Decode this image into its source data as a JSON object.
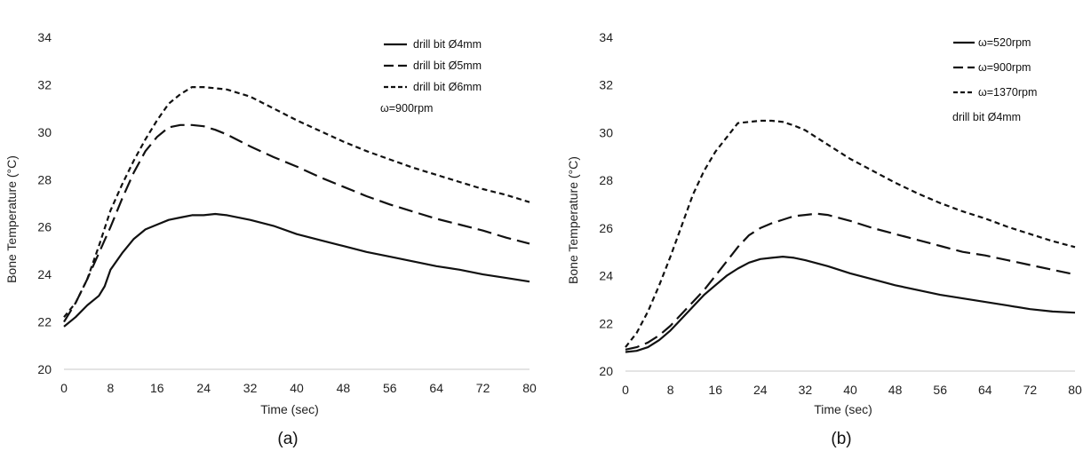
{
  "chart_data": [
    {
      "type": "line",
      "panel_label": "(a)",
      "xlabel": "Time (sec)",
      "ylabel": "Bone Temperature (°C)",
      "xlim": [
        0,
        80
      ],
      "ylim": [
        20,
        34
      ],
      "xticks": [
        0,
        8,
        16,
        24,
        32,
        40,
        48,
        56,
        64,
        72,
        80
      ],
      "yticks": [
        20,
        22,
        24,
        26,
        28,
        30,
        32,
        34
      ],
      "grid": false,
      "legend_position": "top-right",
      "legend_note": "ω=900rpm",
      "series": [
        {
          "name": "drill bit Ø4mm",
          "dash": "solid",
          "x": [
            0,
            2,
            4,
            6,
            7,
            8,
            10,
            12,
            14,
            16,
            18,
            20,
            22,
            24,
            26,
            28,
            32,
            36,
            40,
            44,
            48,
            52,
            56,
            60,
            64,
            68,
            72,
            76,
            80
          ],
          "y": [
            21.8,
            22.2,
            22.7,
            23.1,
            23.5,
            24.2,
            24.9,
            25.5,
            25.9,
            26.1,
            26.3,
            26.4,
            26.5,
            26.5,
            26.55,
            26.5,
            26.3,
            26.05,
            25.7,
            25.45,
            25.2,
            24.95,
            24.75,
            24.55,
            24.35,
            24.2,
            24.0,
            23.85,
            23.7
          ]
        },
        {
          "name": "drill bit Ø5mm",
          "dash": "long-dash",
          "x": [
            0,
            2,
            4,
            6,
            8,
            10,
            12,
            14,
            16,
            18,
            20,
            22,
            24,
            26,
            28,
            32,
            36,
            40,
            44,
            48,
            52,
            56,
            60,
            64,
            68,
            72,
            76,
            80
          ],
          "y": [
            22.0,
            22.8,
            23.8,
            24.9,
            26.0,
            27.2,
            28.3,
            29.2,
            29.8,
            30.2,
            30.3,
            30.3,
            30.25,
            30.1,
            29.9,
            29.4,
            28.95,
            28.55,
            28.1,
            27.7,
            27.3,
            26.95,
            26.65,
            26.35,
            26.1,
            25.85,
            25.55,
            25.3
          ]
        },
        {
          "name": "drill bit Ø6mm",
          "dash": "short-dash",
          "x": [
            0,
            2,
            4,
            6,
            8,
            10,
            12,
            14,
            16,
            18,
            20,
            22,
            24,
            26,
            28,
            32,
            36,
            40,
            44,
            48,
            52,
            56,
            60,
            64,
            68,
            72,
            76,
            80
          ],
          "y": [
            22.2,
            22.8,
            23.8,
            25.2,
            26.7,
            27.8,
            28.8,
            29.7,
            30.5,
            31.2,
            31.6,
            31.9,
            31.9,
            31.85,
            31.8,
            31.5,
            31.0,
            30.5,
            30.05,
            29.6,
            29.2,
            28.85,
            28.5,
            28.2,
            27.9,
            27.6,
            27.35,
            27.05
          ]
        }
      ]
    },
    {
      "type": "line",
      "panel_label": "(b)",
      "xlabel": "Time (sec)",
      "ylabel": "Bone Temperature (°C)",
      "xlim": [
        0,
        80
      ],
      "ylim": [
        20,
        34
      ],
      "xticks": [
        0,
        8,
        16,
        24,
        32,
        40,
        48,
        56,
        64,
        72,
        80
      ],
      "yticks": [
        20,
        22,
        24,
        26,
        28,
        30,
        32,
        34
      ],
      "grid": false,
      "legend_position": "top-right",
      "legend_note": "drill bit Ø4mm",
      "series": [
        {
          "name": "ω=520rpm",
          "dash": "solid",
          "x": [
            0,
            2,
            4,
            6,
            8,
            10,
            12,
            14,
            16,
            18,
            20,
            22,
            24,
            26,
            28,
            30,
            32,
            36,
            40,
            44,
            48,
            52,
            56,
            60,
            64,
            68,
            72,
            76,
            80
          ],
          "y": [
            20.8,
            20.85,
            21.0,
            21.3,
            21.7,
            22.2,
            22.7,
            23.2,
            23.6,
            24.0,
            24.3,
            24.55,
            24.7,
            24.75,
            24.8,
            24.75,
            24.65,
            24.4,
            24.1,
            23.85,
            23.6,
            23.4,
            23.2,
            23.05,
            22.9,
            22.75,
            22.6,
            22.5,
            22.45
          ]
        },
        {
          "name": "ω=900rpm",
          "dash": "long-dash",
          "x": [
            0,
            2,
            4,
            6,
            8,
            10,
            12,
            14,
            16,
            18,
            20,
            22,
            24,
            26,
            28,
            30,
            32,
            34,
            36,
            40,
            44,
            48,
            52,
            56,
            60,
            64,
            68,
            72,
            76,
            80
          ],
          "y": [
            20.9,
            21.0,
            21.2,
            21.5,
            21.9,
            22.4,
            22.9,
            23.4,
            24.0,
            24.6,
            25.2,
            25.7,
            26.0,
            26.2,
            26.35,
            26.5,
            26.55,
            26.6,
            26.55,
            26.3,
            26.0,
            25.75,
            25.5,
            25.25,
            25.0,
            24.85,
            24.65,
            24.45,
            24.25,
            24.05
          ]
        },
        {
          "name": "ω=1370rpm",
          "dash": "short-dash",
          "x": [
            0,
            2,
            4,
            6,
            8,
            10,
            12,
            14,
            16,
            18,
            20,
            22,
            24,
            26,
            28,
            30,
            32,
            36,
            40,
            44,
            48,
            52,
            56,
            60,
            64,
            68,
            72,
            76,
            80
          ],
          "y": [
            21.0,
            21.6,
            22.5,
            23.6,
            24.8,
            26.1,
            27.4,
            28.4,
            29.2,
            29.8,
            30.4,
            30.45,
            30.5,
            30.5,
            30.45,
            30.3,
            30.1,
            29.5,
            28.9,
            28.4,
            27.9,
            27.45,
            27.05,
            26.7,
            26.4,
            26.05,
            25.75,
            25.45,
            25.2
          ]
        }
      ]
    }
  ]
}
